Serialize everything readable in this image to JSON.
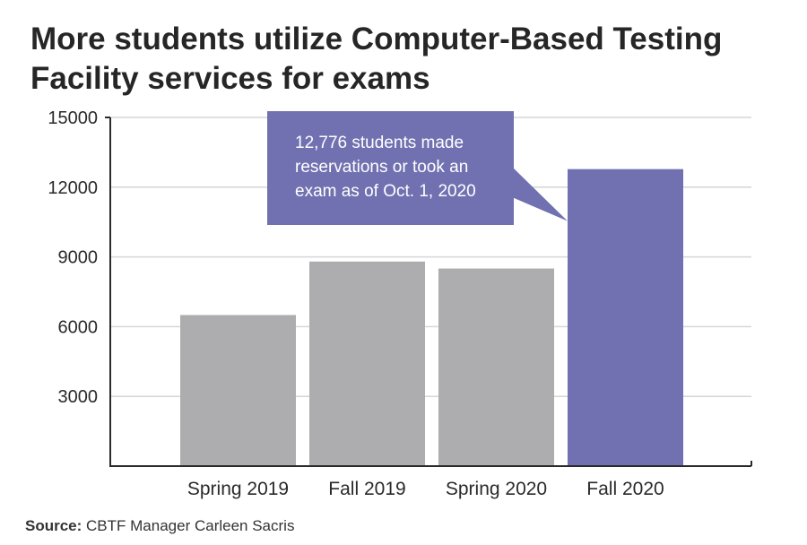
{
  "title_lines": [
    "More students utilize Computer-Based Testing",
    "Facility services for exams"
  ],
  "chart_data": {
    "type": "bar",
    "categories": [
      "Spring 2019",
      "Fall 2019",
      "Spring 2020",
      "Fall 2020"
    ],
    "values": [
      6500,
      8800,
      8500,
      12776
    ],
    "ylim": [
      0,
      15000
    ],
    "yticks": [
      3000,
      6000,
      9000,
      12000,
      15000
    ],
    "grid": true,
    "colors": [
      "#adadb0",
      "#adadb0",
      "#adadb0",
      "#7171b2"
    ],
    "annotation": {
      "lines": [
        "12,776 students made",
        "reservations or took an",
        "exam as of Oct. 1, 2020"
      ],
      "target": "Fall 2020",
      "box_color": "#7171b2"
    }
  },
  "source": {
    "label": "Source:",
    "text": "CBTF Manager Carleen Sacris"
  }
}
